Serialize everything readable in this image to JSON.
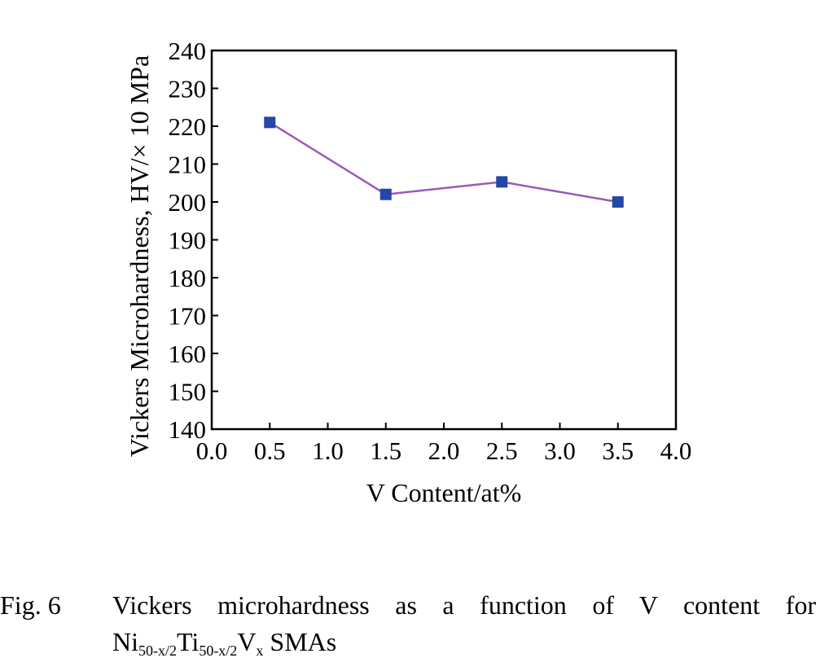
{
  "chart_data": {
    "type": "line",
    "xlabel": "V Content/at%",
    "ylabel": "Vickers Microhardness, HV/× 10 MPa",
    "xlim": [
      0.0,
      4.0
    ],
    "ylim": [
      140,
      240
    ],
    "xticks": [
      "0.0",
      "0.5",
      "1.0",
      "1.5",
      "2.0",
      "2.5",
      "3.0",
      "3.5",
      "4.0"
    ],
    "yticks": [
      "140",
      "150",
      "160",
      "170",
      "180",
      "190",
      "200",
      "210",
      "220",
      "230",
      "240"
    ],
    "series": [
      {
        "x": [
          0.5,
          1.5,
          2.5,
          3.5
        ],
        "y": [
          221,
          202,
          205.3,
          200
        ]
      }
    ],
    "colors": {
      "line": "#9b59b6",
      "marker": "#2446a8"
    },
    "grid": false,
    "legend": "none"
  },
  "caption": {
    "label": "Fig. 6",
    "text": "Vickers microhardness as a function of V content for",
    "formula": {
      "ni": "Ni",
      "ni_sub": "50-x/2",
      "ti": "Ti",
      "ti_sub": "50-x/2",
      "v": "V",
      "v_sub": "x",
      "tail": " SMAs"
    }
  }
}
